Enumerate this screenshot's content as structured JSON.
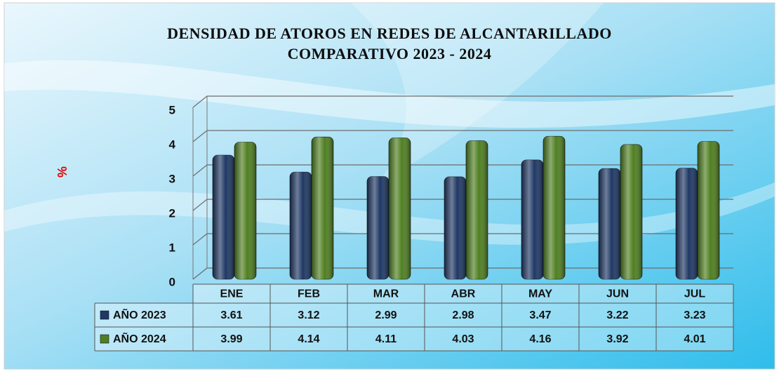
{
  "chart_data": {
    "type": "bar",
    "title": "DENSIDAD DE ATOROS EN REDES DE ALCANTARILLADO",
    "subtitle": "COMPARATIVO 2023 - 2024",
    "y_label": "%",
    "categories": [
      "ENE",
      "FEB",
      "MAR",
      "ABR",
      "MAY",
      "JUN",
      "JUL"
    ],
    "series": [
      {
        "name": "AÑO 2023",
        "color": "#1f3864",
        "values": [
          3.61,
          3.12,
          2.99,
          2.98,
          3.47,
          3.22,
          3.23
        ]
      },
      {
        "name": "AÑO 2024",
        "color": "#4f7f22",
        "values": [
          3.99,
          4.14,
          4.11,
          4.03,
          4.16,
          3.92,
          4.01
        ]
      }
    ],
    "ylim": [
      0,
      5
    ],
    "yticks": [
      0,
      1,
      2,
      3,
      4,
      5
    ],
    "grid": true,
    "data_table": true
  }
}
